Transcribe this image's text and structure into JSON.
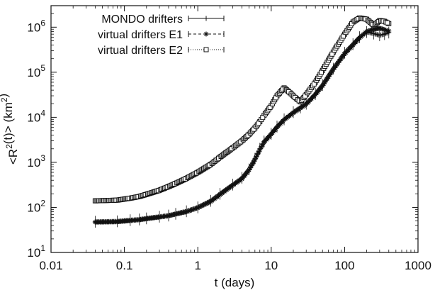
{
  "chart_data": {
    "type": "scatter",
    "xlabel": "t (days)",
    "ylabel": "<R^2(t)> (km^2)",
    "xscale": "log",
    "yscale": "log",
    "xlim": [
      0.01,
      1000
    ],
    "ylim": [
      10,
      3000000
    ],
    "x_ticks": [
      {
        "value": 0.01,
        "label": "0.01"
      },
      {
        "value": 0.1,
        "label": "0.1"
      },
      {
        "value": 1,
        "label": "1"
      },
      {
        "value": 10,
        "label": "10"
      },
      {
        "value": 100,
        "label": "100"
      },
      {
        "value": 1000,
        "label": "1000"
      }
    ],
    "y_ticks": [
      {
        "value": 10,
        "base": "10",
        "exp": "1"
      },
      {
        "value": 100,
        "base": "10",
        "exp": "2"
      },
      {
        "value": 1000,
        "base": "10",
        "exp": "3"
      },
      {
        "value": 10000,
        "base": "10",
        "exp": "4"
      },
      {
        "value": 100000,
        "base": "10",
        "exp": "5"
      },
      {
        "value": 1000000,
        "base": "10",
        "exp": "6"
      }
    ],
    "legend_position": "top-left",
    "series": [
      {
        "name": "MONDO drifters",
        "marker": "plus",
        "line": "solid",
        "x": [
          0.04,
          0.08,
          0.12,
          0.16,
          0.2,
          0.3,
          0.4,
          0.5,
          0.7,
          1,
          1.5,
          2,
          3,
          4,
          5,
          6,
          7,
          8,
          10,
          12,
          15,
          20,
          25,
          30,
          40,
          50,
          70,
          100,
          130,
          160,
          200,
          250,
          300,
          350,
          400
        ],
        "y": [
          48,
          49,
          52,
          54,
          57,
          62,
          66,
          72,
          82,
          100,
          140,
          200,
          320,
          450,
          700,
          1200,
          2000,
          2900,
          4300,
          6200,
          9000,
          13000,
          16500,
          20000,
          33000,
          52000,
          120000,
          270000,
          420000,
          600000,
          780000,
          720000,
          660000,
          700000,
          760000
        ]
      },
      {
        "name": "virtual drifters E1",
        "marker": "asterisk",
        "line": "dashed",
        "x": [
          0.04,
          0.08,
          0.12,
          0.16,
          0.2,
          0.3,
          0.4,
          0.5,
          0.7,
          1,
          1.5,
          2,
          3,
          4,
          5,
          6,
          7,
          8,
          10,
          12,
          15,
          20,
          25,
          30,
          40,
          50,
          70,
          100,
          130,
          160,
          200,
          250,
          300,
          350,
          400
        ],
        "y": [
          47,
          48,
          51,
          53,
          56,
          61,
          65,
          71,
          80,
          98,
          135,
          190,
          310,
          430,
          680,
          1150,
          1900,
          2800,
          4200,
          6000,
          8800,
          12500,
          16000,
          19500,
          32000,
          50000,
          115000,
          255000,
          400000,
          580000,
          800000,
          900000,
          950000,
          880000,
          820000
        ]
      },
      {
        "name": "virtual drifters E2",
        "marker": "square",
        "line": "dotted",
        "x": [
          0.04,
          0.08,
          0.12,
          0.16,
          0.2,
          0.3,
          0.4,
          0.5,
          0.7,
          1,
          1.5,
          2,
          3,
          4,
          5,
          6,
          7,
          8,
          10,
          12,
          15,
          18,
          22,
          25,
          30,
          40,
          50,
          70,
          100,
          130,
          160,
          200,
          250,
          300,
          350,
          400
        ],
        "y": [
          140,
          145,
          160,
          175,
          195,
          240,
          290,
          340,
          440,
          600,
          900,
          1300,
          2100,
          3000,
          4200,
          5800,
          8000,
          11000,
          18000,
          30000,
          45000,
          35000,
          26000,
          22000,
          32000,
          60000,
          110000,
          280000,
          700000,
          1300000,
          1600000,
          1500000,
          1100000,
          1400000,
          1350000,
          1200000
        ]
      }
    ]
  }
}
